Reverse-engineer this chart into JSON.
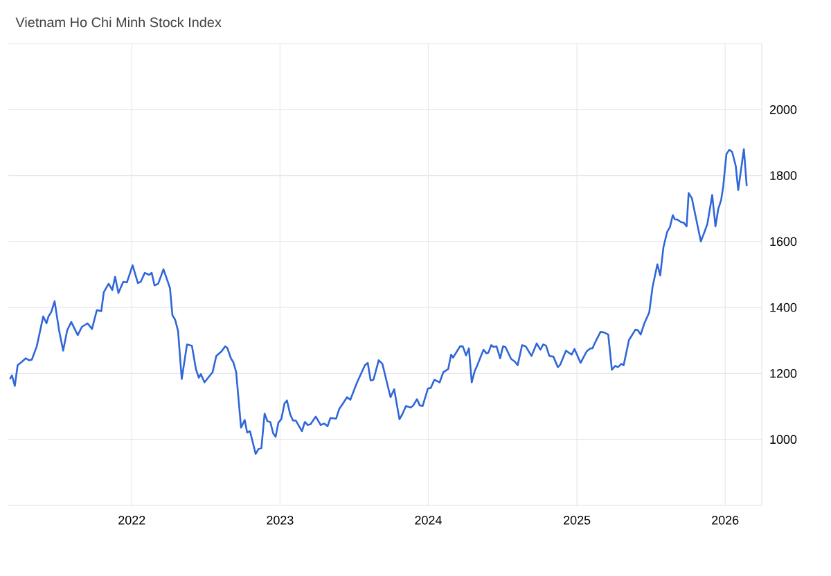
{
  "chart_data": {
    "type": "line",
    "title": "Vietnam Ho Chi Minh Stock Index",
    "color": "#2f66d8",
    "x": [
      "2021-03-07",
      "2021-03-12",
      "2021-03-19",
      "2021-03-26",
      "2021-04-06",
      "2021-04-15",
      "2021-04-23",
      "2021-04-30",
      "2021-05-12",
      "2021-05-28",
      "2021-06-05",
      "2021-06-10",
      "2021-06-17",
      "2021-06-25",
      "2021-07-06",
      "2021-07-16",
      "2021-07-26",
      "2021-08-05",
      "2021-08-21",
      "2021-08-31",
      "2021-09-14",
      "2021-09-25",
      "2021-10-07",
      "2021-10-18",
      "2021-10-24",
      "2021-11-05",
      "2021-11-14",
      "2021-11-21",
      "2021-11-29",
      "2021-12-11",
      "2021-12-20",
      "2022-01-03",
      "2022-01-16",
      "2022-01-23",
      "2022-02-02",
      "2022-02-13",
      "2022-02-19",
      "2022-02-26",
      "2022-03-07",
      "2022-03-20",
      "2022-04-05",
      "2022-04-11",
      "2022-04-18",
      "2022-04-25",
      "2022-05-04",
      "2022-05-17",
      "2022-05-29",
      "2022-06-08",
      "2022-06-15",
      "2022-06-20",
      "2022-06-29",
      "2022-07-19",
      "2022-07-28",
      "2022-08-10",
      "2022-08-19",
      "2022-08-24",
      "2022-09-02",
      "2022-09-08",
      "2022-09-15",
      "2022-09-27",
      "2022-10-06",
      "2022-10-12",
      "2022-10-19",
      "2022-11-02",
      "2022-11-09",
      "2022-11-16",
      "2022-11-24",
      "2022-12-01",
      "2022-12-08",
      "2022-12-15",
      "2022-12-21",
      "2022-12-28",
      "2023-01-04",
      "2023-01-12",
      "2023-01-18",
      "2023-01-26",
      "2023-02-02",
      "2023-02-09",
      "2023-02-24",
      "2023-03-03",
      "2023-03-10",
      "2023-03-17",
      "2023-03-30",
      "2023-04-11",
      "2023-04-20",
      "2023-04-28",
      "2023-05-05",
      "2023-05-19",
      "2023-05-27",
      "2023-06-05",
      "2023-06-15",
      "2023-06-23",
      "2023-07-09",
      "2023-07-29",
      "2023-08-05",
      "2023-08-12",
      "2023-08-19",
      "2023-09-01",
      "2023-09-10",
      "2023-09-30",
      "2023-10-09",
      "2023-10-22",
      "2023-10-29",
      "2023-11-07",
      "2023-11-19",
      "2023-11-25",
      "2023-12-04",
      "2023-12-11",
      "2023-12-18",
      "2023-12-31",
      "2024-01-07",
      "2024-01-16",
      "2024-01-29",
      "2024-02-07",
      "2024-02-19",
      "2024-02-26",
      "2024-03-02",
      "2024-03-19",
      "2024-03-26",
      "2024-04-03",
      "2024-04-10",
      "2024-04-17",
      "2024-04-24",
      "2024-04-30",
      "2024-05-16",
      "2024-05-23",
      "2024-05-28",
      "2024-06-04",
      "2024-06-10",
      "2024-06-17",
      "2024-06-26",
      "2024-07-03",
      "2024-07-09",
      "2024-07-23",
      "2024-08-01",
      "2024-08-08",
      "2024-08-19",
      "2024-08-28",
      "2024-09-11",
      "2024-09-24",
      "2024-10-03",
      "2024-10-10",
      "2024-10-17",
      "2024-10-25",
      "2024-11-04",
      "2024-11-15",
      "2024-11-21",
      "2024-12-05",
      "2024-12-19",
      "2024-12-26",
      "2025-01-10",
      "2025-01-25",
      "2025-02-03",
      "2025-02-08",
      "2025-02-16",
      "2025-02-28",
      "2025-03-09",
      "2025-03-19",
      "2025-03-28",
      "2025-04-05",
      "2025-04-12",
      "2025-04-20",
      "2025-04-26",
      "2025-05-09",
      "2025-05-25",
      "2025-05-31",
      "2025-06-07",
      "2025-06-16",
      "2025-06-28",
      "2025-07-06",
      "2025-07-18",
      "2025-07-25",
      "2025-08-02",
      "2025-08-11",
      "2025-08-18",
      "2025-08-25",
      "2025-08-30",
      "2025-09-05",
      "2025-09-14",
      "2025-09-21",
      "2025-09-28",
      "2025-10-03",
      "2025-10-11",
      "2025-11-02",
      "2025-11-11",
      "2025-11-18",
      "2025-11-30",
      "2025-12-08",
      "2025-12-15",
      "2025-12-22",
      "2025-12-27",
      "2026-01-04",
      "2026-01-11",
      "2026-01-18",
      "2026-01-27",
      "2026-02-02",
      "2026-02-16",
      "2026-02-23"
    ],
    "values": [
      1183,
      1194,
      1162,
      1225,
      1236,
      1246,
      1240,
      1242,
      1282,
      1373,
      1352,
      1373,
      1387,
      1419,
      1331,
      1269,
      1331,
      1356,
      1316,
      1341,
      1352,
      1335,
      1392,
      1389,
      1446,
      1472,
      1453,
      1493,
      1444,
      1478,
      1476,
      1528,
      1474,
      1478,
      1505,
      1499,
      1505,
      1467,
      1472,
      1516,
      1459,
      1377,
      1362,
      1328,
      1183,
      1288,
      1284,
      1213,
      1187,
      1198,
      1173,
      1204,
      1253,
      1267,
      1282,
      1278,
      1246,
      1234,
      1204,
      1036,
      1059,
      1021,
      1025,
      956,
      971,
      973,
      1078,
      1055,
      1053,
      1019,
      1008,
      1051,
      1061,
      1109,
      1118,
      1076,
      1057,
      1057,
      1025,
      1053,
      1044,
      1046,
      1069,
      1044,
      1048,
      1040,
      1065,
      1063,
      1093,
      1109,
      1128,
      1120,
      1171,
      1225,
      1232,
      1179,
      1181,
      1240,
      1229,
      1128,
      1152,
      1061,
      1076,
      1101,
      1097,
      1103,
      1122,
      1103,
      1101,
      1154,
      1156,
      1181,
      1173,
      1204,
      1213,
      1257,
      1248,
      1282,
      1282,
      1255,
      1276,
      1173,
      1206,
      1223,
      1272,
      1261,
      1263,
      1286,
      1280,
      1282,
      1246,
      1282,
      1280,
      1244,
      1236,
      1225,
      1286,
      1282,
      1253,
      1291,
      1272,
      1288,
      1284,
      1253,
      1251,
      1219,
      1227,
      1269,
      1257,
      1274,
      1232,
      1267,
      1276,
      1276,
      1297,
      1326,
      1324,
      1318,
      1211,
      1223,
      1219,
      1229,
      1225,
      1301,
      1333,
      1331,
      1318,
      1352,
      1385,
      1461,
      1531,
      1497,
      1583,
      1629,
      1644,
      1680,
      1667,
      1667,
      1659,
      1657,
      1646,
      1747,
      1731,
      1600,
      1629,
      1653,
      1741,
      1646,
      1699,
      1726,
      1766,
      1865,
      1878,
      1872,
      1829,
      1756,
      1880,
      1768
    ],
    "xlim": [
      "2021-03-03",
      "2026-04-01"
    ],
    "ylim": [
      800,
      2200
    ],
    "xticks": [
      {
        "value": "2022-01-01",
        "label": "2022"
      },
      {
        "value": "2023-01-01",
        "label": "2023"
      },
      {
        "value": "2024-01-01",
        "label": "2024"
      },
      {
        "value": "2025-01-01",
        "label": "2025"
      },
      {
        "value": "2026-01-01",
        "label": "2026"
      }
    ],
    "yticks": [
      1000,
      1200,
      1400,
      1600,
      1800,
      2000,
      {
        "value": 2200,
        "label": null
      }
    ],
    "grid": true
  }
}
